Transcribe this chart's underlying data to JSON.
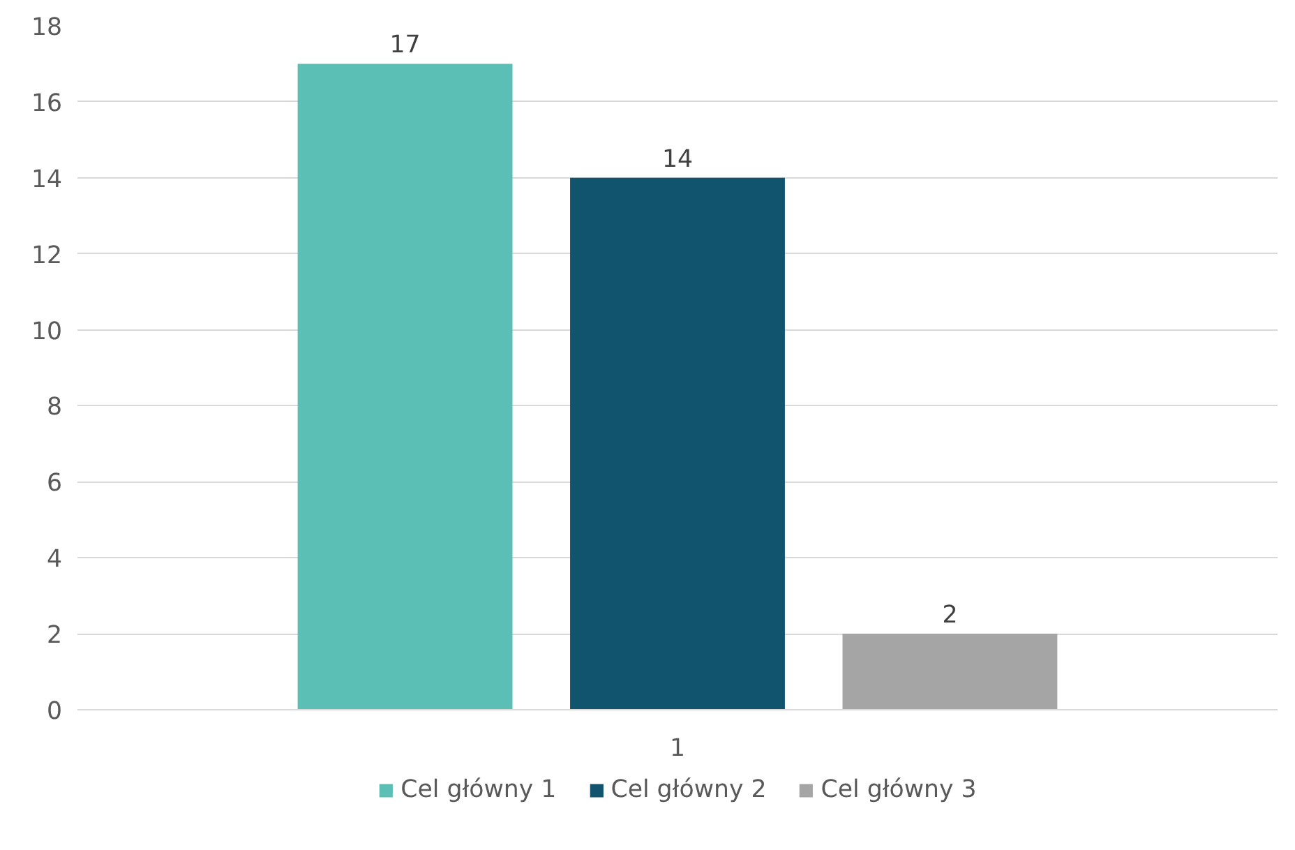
{
  "chart_data": {
    "type": "bar",
    "categories": [
      "1"
    ],
    "series": [
      {
        "name": "Cel główny 1",
        "color": "#5bbfb5",
        "values": [
          17
        ]
      },
      {
        "name": "Cel główny 2",
        "color": "#10546e",
        "values": [
          14
        ]
      },
      {
        "name": "Cel główny 3",
        "color": "#a5a5a5",
        "values": [
          2
        ]
      }
    ],
    "ylim": [
      0,
      18
    ],
    "yticks": [
      0,
      2,
      4,
      6,
      8,
      10,
      12,
      14,
      16,
      18
    ],
    "grid": "y",
    "legend": "bottom",
    "data_labels": true
  }
}
